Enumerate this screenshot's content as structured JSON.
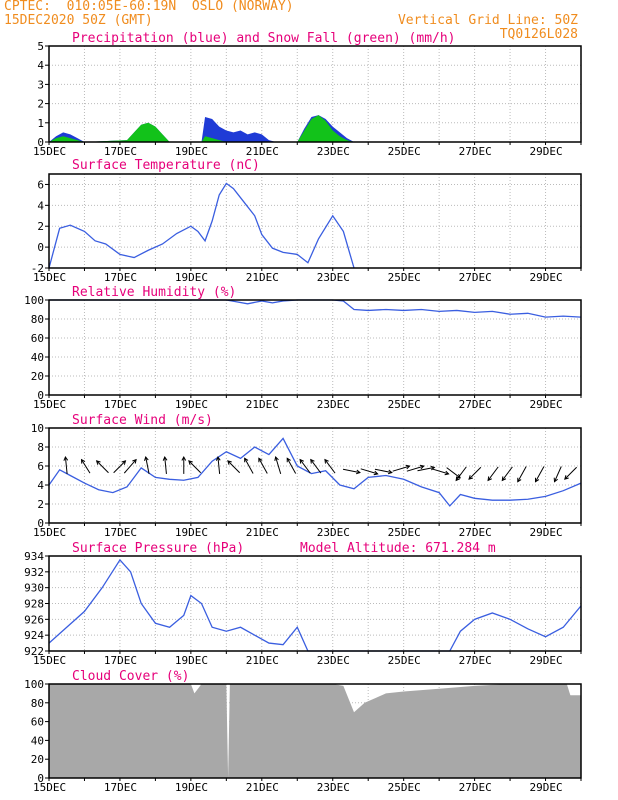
{
  "header": {
    "line1_left": "CPTEC:  010:05E-60:19N  OSLO (NORWAY)",
    "line2_left": "15DEC2020 50Z (GMT)",
    "line2_right": "Vertical Grid Line: 50Z",
    "line3_right": "TQ0126L028"
  },
  "colors": {
    "header": "#f08c1e",
    "titles": "#e6007a",
    "precip": "#1f3bd6",
    "snow": "#12c21a",
    "line": "#3a5ee0",
    "cloud": "#a8a8a8"
  },
  "x_axis": {
    "labels": [
      "15DEC",
      "17DEC",
      "19DEC",
      "21DEC",
      "23DEC",
      "25DEC",
      "27DEC",
      "29DEC"
    ],
    "day_start": 15,
    "day_end": 30
  },
  "chart_data": [
    {
      "type": "area",
      "title": "Precipitation (blue) and Snow Fall (green) (mm/h)",
      "ylim": [
        0,
        5
      ],
      "yticks": [
        "0",
        "1",
        "2",
        "3",
        "4",
        "5"
      ],
      "series": [
        {
          "name": "Precipitation",
          "x": [
            15.0,
            15.2,
            15.4,
            15.6,
            15.8,
            16.0,
            17.2,
            17.4,
            17.6,
            17.8,
            18.0,
            18.2,
            18.4,
            19.3,
            19.4,
            19.6,
            19.8,
            20.0,
            20.2,
            20.4,
            20.6,
            20.8,
            21.0,
            21.2,
            21.4,
            22.0,
            22.2,
            22.4,
            22.6,
            22.8,
            23.0,
            23.2,
            23.4,
            23.6
          ],
          "y": [
            0.0,
            0.3,
            0.5,
            0.4,
            0.2,
            0.0,
            0.1,
            0.5,
            0.9,
            1.0,
            0.8,
            0.4,
            0.0,
            0.0,
            1.3,
            1.2,
            0.8,
            0.6,
            0.5,
            0.6,
            0.4,
            0.5,
            0.4,
            0.1,
            0.0,
            0.0,
            0.7,
            1.3,
            1.4,
            1.2,
            0.8,
            0.5,
            0.2,
            0.0
          ]
        },
        {
          "name": "Snow Fall",
          "x": [
            15.0,
            15.2,
            15.4,
            15.6,
            15.8,
            16.0,
            17.2,
            17.4,
            17.6,
            17.8,
            18.0,
            18.2,
            18.4,
            19.3,
            19.4,
            19.6,
            19.8,
            20.0,
            22.0,
            22.2,
            22.4,
            22.6,
            22.8,
            23.0,
            23.2,
            23.4,
            23.6
          ],
          "y": [
            0.0,
            0.2,
            0.3,
            0.2,
            0.1,
            0.0,
            0.1,
            0.5,
            0.9,
            1.0,
            0.8,
            0.4,
            0.0,
            0.0,
            0.3,
            0.2,
            0.1,
            0.0,
            0.0,
            0.6,
            1.2,
            1.4,
            1.1,
            0.6,
            0.3,
            0.1,
            0.0
          ]
        }
      ]
    },
    {
      "type": "line",
      "title": "Surface Temperature (nC)",
      "ylim": [
        -2,
        7
      ],
      "yticks": [
        "-2",
        "0",
        "2",
        "4",
        "6"
      ],
      "series": [
        {
          "name": "Temperature",
          "x": [
            15.0,
            15.3,
            15.6,
            16.0,
            16.3,
            16.6,
            17.0,
            17.4,
            17.8,
            18.2,
            18.6,
            19.0,
            19.2,
            19.4,
            19.6,
            19.8,
            20.0,
            20.2,
            20.5,
            20.8,
            21.0,
            21.3,
            21.6,
            22.0,
            22.3,
            22.6,
            23.0,
            23.3,
            23.6
          ],
          "y": [
            -2.0,
            1.8,
            2.1,
            1.5,
            0.6,
            0.3,
            -0.7,
            -1.0,
            -0.3,
            0.3,
            1.3,
            2.0,
            1.5,
            0.6,
            2.5,
            5.0,
            6.1,
            5.6,
            4.3,
            3.0,
            1.2,
            -0.1,
            -0.5,
            -0.7,
            -1.5,
            0.8,
            3.0,
            1.5,
            -2.0
          ]
        }
      ]
    },
    {
      "type": "line",
      "title": "Relative Humidity (%)",
      "ylim": [
        0,
        100
      ],
      "yticks": [
        "0",
        "20",
        "40",
        "60",
        "80",
        "100"
      ],
      "series": [
        {
          "name": "Humidity",
          "x": [
            15.0,
            20.0,
            20.3,
            20.6,
            21.0,
            21.3,
            21.6,
            22.0,
            23.0,
            23.3,
            23.6,
            24.0,
            24.5,
            25.0,
            25.5,
            26.0,
            26.5,
            27.0,
            27.5,
            28.0,
            28.5,
            29.0,
            29.5,
            30.0
          ],
          "y": [
            100,
            100,
            98,
            96,
            99,
            97,
            99,
            100,
            100,
            99,
            90,
            89,
            90,
            89,
            90,
            88,
            89,
            87,
            88,
            85,
            86,
            82,
            83,
            82
          ]
        }
      ]
    },
    {
      "type": "line",
      "title": "Surface Wind (m/s)",
      "ylim": [
        0,
        10
      ],
      "yticks": [
        "0",
        "2",
        "4",
        "6",
        "8",
        "10"
      ],
      "series": [
        {
          "name": "Wind speed",
          "x": [
            15.0,
            15.3,
            15.6,
            16.0,
            16.4,
            16.8,
            17.2,
            17.6,
            18.0,
            18.4,
            18.8,
            19.2,
            19.6,
            20.0,
            20.4,
            20.8,
            21.2,
            21.6,
            22.0,
            22.4,
            22.8,
            23.2,
            23.6,
            24.0,
            24.5,
            25.0,
            25.5,
            26.0,
            26.3,
            26.6,
            27.0,
            27.5,
            28.0,
            28.5,
            29.0,
            29.5,
            30.0
          ],
          "y": [
            4.0,
            5.6,
            5.0,
            4.2,
            3.5,
            3.2,
            3.8,
            5.8,
            4.8,
            4.6,
            4.5,
            4.8,
            6.5,
            7.5,
            6.8,
            8.0,
            7.2,
            8.9,
            6.0,
            5.2,
            5.5,
            4.0,
            3.6,
            4.8,
            5.0,
            4.6,
            3.8,
            3.2,
            1.8,
            3.0,
            2.6,
            2.4,
            2.4,
            2.5,
            2.8,
            3.4,
            4.2
          ]
        }
      ]
    },
    {
      "type": "line",
      "title": "Surface Pressure (hPa)",
      "annotation": "Model Altitude: 671.284 m",
      "ylim": [
        922,
        934
      ],
      "yticks": [
        "922",
        "924",
        "926",
        "928",
        "930",
        "932",
        "934"
      ],
      "series": [
        {
          "name": "Pressure",
          "x": [
            15.0,
            15.5,
            16.0,
            16.5,
            17.0,
            17.3,
            17.6,
            18.0,
            18.4,
            18.8,
            19.0,
            19.3,
            19.6,
            20.0,
            20.4,
            20.8,
            21.2,
            21.6,
            22.0,
            22.3,
            26.3,
            26.6,
            27.0,
            27.5,
            28.0,
            28.5,
            29.0,
            29.5,
            30.0
          ],
          "y": [
            923.0,
            925.0,
            927.0,
            930.0,
            933.5,
            932.0,
            928.0,
            925.5,
            925.0,
            926.5,
            929.0,
            928.0,
            925.0,
            924.5,
            925.0,
            924.0,
            923.0,
            922.8,
            925.0,
            922.0,
            922.0,
            924.5,
            926.0,
            926.8,
            926.0,
            924.8,
            923.8,
            925.0,
            927.7
          ]
        }
      ]
    },
    {
      "type": "area",
      "title": "Cloud Cover (%)",
      "ylim": [
        0,
        100
      ],
      "yticks": [
        "0",
        "20",
        "40",
        "60",
        "80",
        "100"
      ],
      "series": [
        {
          "name": "Cloud cover",
          "x": [
            15.0,
            19.0,
            19.1,
            19.2,
            19.3,
            20.0,
            20.05,
            20.1,
            20.2,
            23.0,
            23.3,
            23.6,
            23.9,
            24.2,
            24.5,
            25.0,
            26.0,
            27.0,
            28.0,
            29.0,
            29.6,
            29.7,
            29.8,
            30.0
          ],
          "y": [
            100,
            100,
            90,
            95,
            100,
            100,
            0,
            100,
            100,
            100,
            98,
            70,
            80,
            85,
            90,
            92,
            95,
            98,
            100,
            100,
            100,
            88,
            88,
            88
          ]
        }
      ]
    }
  ]
}
